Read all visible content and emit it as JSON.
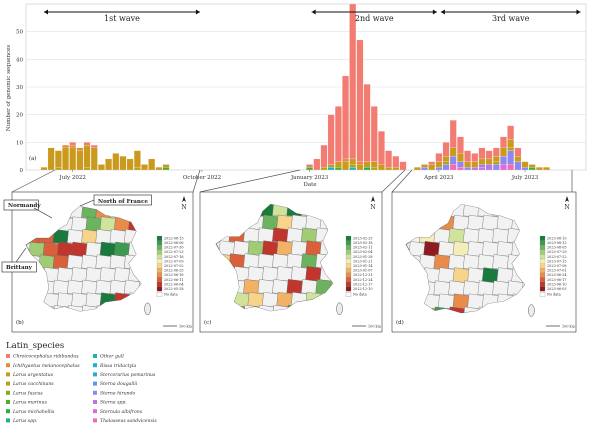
{
  "chart_data": {
    "type": "bar",
    "stacked": true,
    "ylabel": "Number of genomic sequences",
    "xlabel": "Date",
    "panel_label": "(a)",
    "ylim": [
      0,
      60
    ],
    "yticks": [
      0,
      10,
      20,
      30,
      40,
      50
    ],
    "x_ticks": [
      "July 2022",
      "October 2022",
      "January 2023",
      "April 2023",
      "July 2023"
    ],
    "waves": [
      {
        "label": "1st wave",
        "from_week": 0,
        "to_week": 22
      },
      {
        "label": "2nd wave",
        "from_week": 37,
        "to_week": 55
      },
      {
        "label": "3rd wave",
        "from_week": 55,
        "to_week": 75
      }
    ],
    "grid": true,
    "species": [
      {
        "name": "Chroicocephalus ridibundus",
        "color": "#f27c72"
      },
      {
        "name": "Ichthyaetus melanocephalus",
        "color": "#e08a3c"
      },
      {
        "name": "Larus argentatus",
        "color": "#c99a1d"
      },
      {
        "name": "Larus cacchinans",
        "color": "#b8a01a"
      },
      {
        "name": "Larus fuscus",
        "color": "#8aa61c"
      },
      {
        "name": "Larus marinus",
        "color": "#4fae28"
      },
      {
        "name": "Larus michahellis",
        "color": "#27ae4c"
      },
      {
        "name": "Larus spp.",
        "color": "#20b08a"
      },
      {
        "name": "Other gull",
        "color": "#1db3ab"
      },
      {
        "name": "Rissa tridactyla",
        "color": "#1cb2c7"
      },
      {
        "name": "Stercorarius pomarinus",
        "color": "#2aa8df"
      },
      {
        "name": "Sterna dougallii",
        "color": "#5b97ea"
      },
      {
        "name": "Sterna hirundo",
        "color": "#8f86ee"
      },
      {
        "name": "Sterna spp.",
        "color": "#b776ea"
      },
      {
        "name": "Sternula albifrons",
        "color": "#e06ad9"
      },
      {
        "name": "Thalasseus sandvicensis",
        "color": "#f06ab6"
      }
    ],
    "weeks": [
      {
        "w": 0,
        "s": {
          "Larus argentatus": 1
        }
      },
      {
        "w": 1,
        "s": {
          "Larus argentatus": 8
        }
      },
      {
        "w": 2,
        "s": {
          "Larus argentatus": 6,
          "Larus cacchinans": 1
        }
      },
      {
        "w": 3,
        "s": {
          "Larus argentatus": 8,
          "Ichthyaetus melanocephalus": 1
        }
      },
      {
        "w": 4,
        "s": {
          "Larus argentatus": 8,
          "Chroicocephalus ridibundus": 1,
          "Ichthyaetus melanocephalus": 1
        }
      },
      {
        "w": 5,
        "s": {
          "Larus argentatus": 7,
          "Ichthyaetus melanocephalus": 1
        }
      },
      {
        "w": 6,
        "s": {
          "Larus argentatus": 8,
          "Chroicocephalus ridibundus": 1,
          "Larus cacchinans": 1
        }
      },
      {
        "w": 7,
        "s": {
          "Larus argentatus": 8,
          "Chroicocephalus ridibundus": 1
        }
      },
      {
        "w": 8,
        "s": {
          "Larus argentatus": 2
        }
      },
      {
        "w": 9,
        "s": {
          "Larus argentatus": 4
        }
      },
      {
        "w": 10,
        "s": {
          "Larus argentatus": 6
        }
      },
      {
        "w": 11,
        "s": {
          "Larus argentatus": 5
        }
      },
      {
        "w": 12,
        "s": {
          "Larus argentatus": 4
        }
      },
      {
        "w": 13,
        "s": {
          "Larus argentatus": 6,
          "Larus cacchinans": 1
        }
      },
      {
        "w": 14,
        "s": {
          "Larus argentatus": 2
        }
      },
      {
        "w": 15,
        "s": {
          "Larus argentatus": 4
        }
      },
      {
        "w": 16,
        "s": {
          "Larus argentatus": 1
        }
      },
      {
        "w": 17,
        "s": {
          "Larus argentatus": 1,
          "Larus marinus": 1
        }
      },
      {
        "w": 37,
        "s": {
          "Chroicocephalus ridibundus": 1,
          "Larus marinus": 1
        }
      },
      {
        "w": 38,
        "s": {
          "Chroicocephalus ridibundus": 4
        }
      },
      {
        "w": 39,
        "s": {
          "Chroicocephalus ridibundus": 8,
          "Larus cacchinans": 1
        }
      },
      {
        "w": 40,
        "s": {
          "Chroicocephalus ridibundus": 18,
          "Larus argentatus": 1,
          "Rissa tridactyla": 1
        }
      },
      {
        "w": 41,
        "s": {
          "Chroicocephalus ridibundus": 20,
          "Larus argentatus": 2,
          "Larus marinus": 1
        }
      },
      {
        "w": 42,
        "s": {
          "Chroicocephalus ridibundus": 30,
          "Larus argentatus": 3,
          "Ichthyaetus melanocephalus": 1
        }
      },
      {
        "w": 43,
        "s": {
          "Chroicocephalus ridibundus": 56,
          "Larus argentatus": 2,
          "Larus cacchinans": 1,
          "Rissa tridactyla": 1
        }
      },
      {
        "w": 44,
        "s": {
          "Chroicocephalus ridibundus": 44,
          "Larus argentatus": 2,
          "Ichthyaetus melanocephalus": 1
        }
      },
      {
        "w": 45,
        "s": {
          "Chroicocephalus ridibundus": 28,
          "Larus argentatus": 2,
          "Larus michahellis": 1
        }
      },
      {
        "w": 46,
        "s": {
          "Chroicocephalus ridibundus": 20,
          "Larus argentatus": 2,
          "Larus cacchinans": 1
        }
      },
      {
        "w": 47,
        "s": {
          "Chroicocephalus ridibundus": 12,
          "Larus argentatus": 2
        }
      },
      {
        "w": 48,
        "s": {
          "Chroicocephalus ridibundus": 6,
          "Larus argentatus": 1
        }
      },
      {
        "w": 49,
        "s": {
          "Chroicocephalus ridibundus": 4,
          "Larus argentatus": 1
        }
      },
      {
        "w": 50,
        "s": {
          "Chroicocephalus ridibundus": 3
        }
      },
      {
        "w": 52,
        "s": {
          "Larus argentatus": 1
        }
      },
      {
        "w": 53,
        "s": {
          "Larus argentatus": 1,
          "Sterna hirundo": 1
        }
      },
      {
        "w": 54,
        "s": {
          "Chroicocephalus ridibundus": 1,
          "Larus argentatus": 2
        }
      },
      {
        "w": 55,
        "s": {
          "Chroicocephalus ridibundus": 3,
          "Larus argentatus": 2,
          "Sterna hirundo": 1
        }
      },
      {
        "w": 56,
        "s": {
          "Chroicocephalus ridibundus": 5,
          "Larus argentatus": 2,
          "Sterna hirundo": 2,
          "Larus cacchinans": 1
        }
      },
      {
        "w": 57,
        "s": {
          "Chroicocephalus ridibundus": 10,
          "Larus argentatus": 3,
          "Sterna hirundo": 3,
          "Thalasseus sandvicensis": 2
        }
      },
      {
        "w": 58,
        "s": {
          "Chroicocephalus ridibundus": 6,
          "Larus argentatus": 3,
          "Sterna hirundo": 2,
          "Thalasseus sandvicensis": 1
        }
      },
      {
        "w": 59,
        "s": {
          "Chroicocephalus ridibundus": 4,
          "Larus argentatus": 2,
          "Sterna hirundo": 1
        }
      },
      {
        "w": 60,
        "s": {
          "Chroicocephalus ridibundus": 3,
          "Larus argentatus": 2,
          "Sterna spp.": 1
        }
      },
      {
        "w": 61,
        "s": {
          "Chroicocephalus ridibundus": 4,
          "Larus argentatus": 2,
          "Sterna hirundo": 1,
          "Sternula albifrons": 1
        }
      },
      {
        "w": 62,
        "s": {
          "Chroicocephalus ridibundus": 3,
          "Larus argentatus": 2,
          "Sterna spp.": 2
        }
      },
      {
        "w": 63,
        "s": {
          "Chroicocephalus ridibundus": 3,
          "Larus argentatus": 2,
          "Sterna hirundo": 2,
          "Larus cacchinans": 1
        }
      },
      {
        "w": 64,
        "s": {
          "Chroicocephalus ridibundus": 4,
          "Larus argentatus": 3,
          "Sterna hirundo": 3,
          "Sternula albifrons": 2
        }
      },
      {
        "w": 65,
        "s": {
          "Chroicocephalus ridibundus": 5,
          "Larus argentatus": 3,
          "Sterna hirundo": 5,
          "Thalasseus sandvicensis": 2,
          "Larus cacchinans": 1
        }
      },
      {
        "w": 66,
        "s": {
          "Chroicocephalus ridibundus": 3,
          "Larus argentatus": 2,
          "Sterna hirundo": 3
        }
      },
      {
        "w": 67,
        "s": {
          "Larus argentatus": 2,
          "Sterna hirundo": 1
        }
      },
      {
        "w": 68,
        "s": {
          "Larus argentatus": 1,
          "Larus marinus": 1
        }
      },
      {
        "w": 69,
        "s": {
          "Larus argentatus": 1
        }
      },
      {
        "w": 70,
        "s": {
          "Larus argentatus": 1
        }
      }
    ],
    "maps": [
      {
        "label": "(b)",
        "scale": "100 km",
        "no_data": "No data",
        "region_labels": [
          "Normandy",
          "North of France",
          "Brittany"
        ],
        "key": [
          "2022-08-13",
          "2022-08-06",
          "2022-07-30",
          "2022-07-23",
          "2022-07-16",
          "2022-07-09",
          "2022-07-02",
          "2022-06-25",
          "2022-06-18",
          "2022-06-11",
          "2022-06-04",
          "2022-05-28"
        ]
      },
      {
        "label": "(c)",
        "scale": "100 km",
        "no_data": "No data",
        "key": [
          "2023-02-25",
          "2023-02-18",
          "2023-02-11",
          "2023-02-04",
          "2023-01-28",
          "2023-01-21",
          "2023-01-14",
          "2023-01-07",
          "2022-12-31",
          "2022-12-24",
          "2022-12-17",
          "2022-12-10"
        ]
      },
      {
        "label": "(d)",
        "scale": "100 km",
        "no_data": "No data",
        "key": [
          "2023-08-19",
          "2023-08-12",
          "2023-08-05",
          "2023-07-29",
          "2023-07-22",
          "2023-07-15",
          "2023-07-08",
          "2023-07-01",
          "2023-06-24",
          "2023-06-17",
          "2023-06-10",
          "2023-06-03"
        ]
      }
    ],
    "legend_title": "Latin_species",
    "legend_placement": "bottom-left"
  },
  "north_label": "N"
}
